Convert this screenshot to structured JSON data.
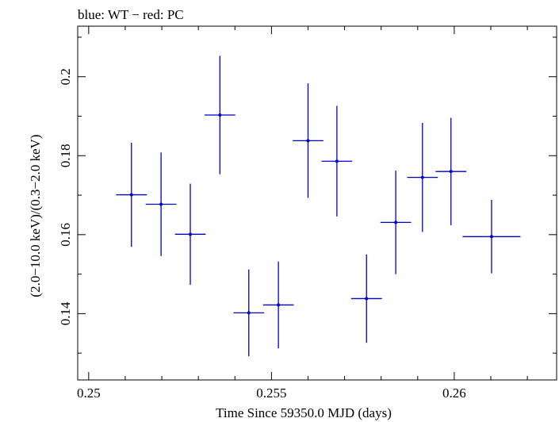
{
  "chart_data": {
    "type": "scatter",
    "title": "blue: WT − red: PC",
    "xlabel": "Time Since 59350.0 MJD (days)",
    "ylabel": "(2.0−10.0 keV)/(0.3−2.0 keV)",
    "xlim": [
      0.2497,
      0.2628
    ],
    "ylim": [
      0.1232,
      0.2128
    ],
    "x_ticks": [
      0.25,
      0.255,
      0.26
    ],
    "x_tick_labels": [
      "0.25",
      "0.255",
      "0.26"
    ],
    "y_ticks": [
      0.14,
      0.16,
      0.18,
      0.2
    ],
    "y_tick_labels": [
      "0.14",
      "0.16",
      "0.18",
      "0.2"
    ],
    "grid": false,
    "series": [
      {
        "color": "#0000cc",
        "points": [
          {
            "x": 0.25117,
            "xerr": 0.00042,
            "y": 0.1701,
            "yerr": 0.0132
          },
          {
            "x": 0.25198,
            "xerr": 0.00042,
            "y": 0.1677,
            "yerr": 0.0131
          },
          {
            "x": 0.25278,
            "xerr": 0.00042,
            "y": 0.1601,
            "yerr": 0.0128
          },
          {
            "x": 0.25359,
            "xerr": 0.00042,
            "y": 0.1903,
            "yerr": 0.015
          },
          {
            "x": 0.25438,
            "xerr": 0.00042,
            "y": 0.1402,
            "yerr": 0.011
          },
          {
            "x": 0.25519,
            "xerr": 0.00042,
            "y": 0.1422,
            "yerr": 0.011
          },
          {
            "x": 0.256,
            "xerr": 0.00042,
            "y": 0.1838,
            "yerr": 0.0145
          },
          {
            "x": 0.25679,
            "xerr": 0.00042,
            "y": 0.1786,
            "yerr": 0.014
          },
          {
            "x": 0.2576,
            "xerr": 0.00042,
            "y": 0.1438,
            "yerr": 0.0112
          },
          {
            "x": 0.2584,
            "xerr": 0.00042,
            "y": 0.1631,
            "yerr": 0.0131
          },
          {
            "x": 0.25913,
            "xerr": 0.00042,
            "y": 0.1745,
            "yerr": 0.0138
          },
          {
            "x": 0.25991,
            "xerr": 0.00042,
            "y": 0.176,
            "yerr": 0.0136
          },
          {
            "x": 0.26102,
            "xerr": 0.00079,
            "y": 0.1595,
            "yerr": 0.0093
          }
        ]
      }
    ]
  }
}
